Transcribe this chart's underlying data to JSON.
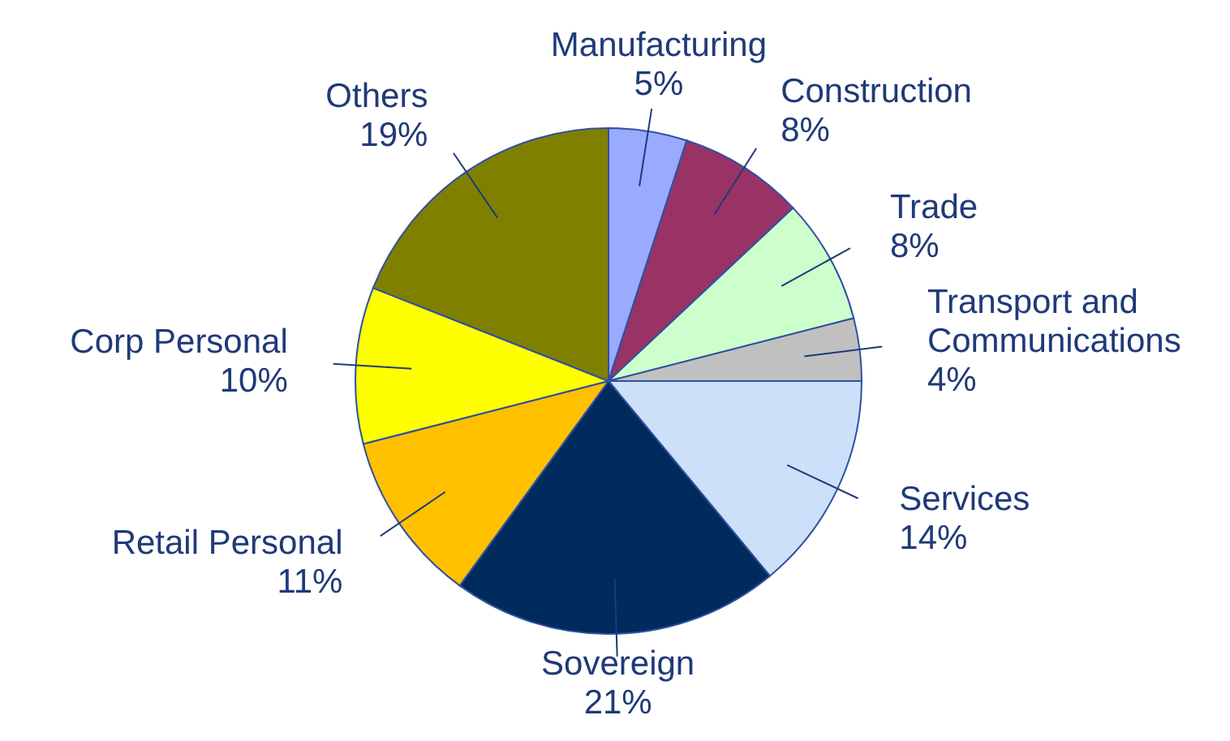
{
  "chart_data": {
    "type": "pie",
    "categories": [
      "Manufacturing",
      "Construction",
      "Trade",
      "Transport and Communications",
      "Services",
      "Sovereign",
      "Retail Personal",
      "Corp Personal",
      "Others"
    ],
    "values": [
      5,
      8,
      8,
      4,
      14,
      21,
      11,
      10,
      19
    ],
    "value_labels": [
      "5%",
      "8%",
      "8%",
      "4%",
      "14%",
      "21%",
      "11%",
      "10%",
      "19%"
    ],
    "colors": [
      "#99aaff",
      "#993366",
      "#ccffcc",
      "#c0c0c0",
      "#cce0fa",
      "#002b5c",
      "#ffc000",
      "#ffff00",
      "#808000"
    ],
    "legend": false
  }
}
